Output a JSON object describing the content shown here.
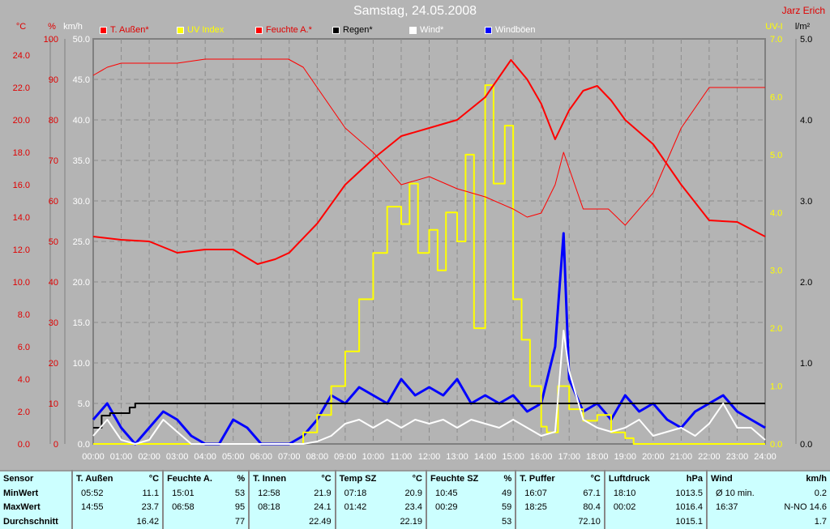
{
  "header": {
    "title": "Samstag, 24.05.2008",
    "author": "Jarz Erich"
  },
  "legend": [
    {
      "label": "T. Außen*",
      "color": "#ff0000",
      "text_color": "#e00000"
    },
    {
      "label": "UV Index",
      "color": "#ffff00",
      "text_color": "#ffff00"
    },
    {
      "label": "Feuchte A.*",
      "color": "#ff0000",
      "text_color": "#e00000"
    },
    {
      "label": "Regen*",
      "color": "#000000",
      "text_color": "#000000"
    },
    {
      "label": "Wind*",
      "color": "#ffffff",
      "text_color": "#ffffff"
    },
    {
      "label": "Windböen",
      "color": "#0000ff",
      "text_color": "#ffffff"
    }
  ],
  "chart_data": {
    "type": "line",
    "x_ticks": [
      "00:00",
      "01:00",
      "02:00",
      "03:00",
      "04:00",
      "05:00",
      "06:00",
      "07:00",
      "08:00",
      "09:00",
      "10:00",
      "11:00",
      "12:00",
      "13:00",
      "14:00",
      "15:00",
      "16:00",
      "17:00",
      "18:00",
      "19:00",
      "20:00",
      "21:00",
      "22:00",
      "23:00",
      "24:00"
    ],
    "axes": {
      "temp": {
        "unit": "°C",
        "range": [
          0,
          25
        ],
        "ticks": [
          "0.0",
          "2.0",
          "4.0",
          "6.0",
          "8.0",
          "10.0",
          "12.0",
          "14.0",
          "16.0",
          "18.0",
          "20.0",
          "22.0",
          "24.0"
        ],
        "color": "#e00000"
      },
      "hum": {
        "unit": "%",
        "range": [
          0,
          100
        ],
        "ticks": [
          "0",
          "10",
          "20",
          "30",
          "40",
          "50",
          "60",
          "70",
          "80",
          "90",
          "100"
        ],
        "color": "#e00000"
      },
      "wind": {
        "unit": "km/h",
        "range": [
          0,
          50
        ],
        "ticks": [
          "0.0",
          "5.0",
          "10.0",
          "15.0",
          "20.0",
          "25.0",
          "30.0",
          "35.0",
          "40.0",
          "45.0",
          "50.0"
        ],
        "color": "#ffffff"
      },
      "uv": {
        "unit": "UV-I",
        "range": [
          0,
          7
        ],
        "ticks": [
          "0.0",
          "1.0",
          "2.0",
          "3.0",
          "4.0",
          "5.0",
          "6.0",
          "7.0"
        ],
        "color": "#ffff00"
      },
      "rain": {
        "unit": "l/m²",
        "range": [
          0,
          5
        ],
        "ticks": [
          "0.0",
          "1.0",
          "2.0",
          "3.0",
          "4.0",
          "5.0"
        ],
        "color": "#000000"
      }
    },
    "grid": true,
    "series": [
      {
        "name": "T. Außen*",
        "axis": "temp",
        "color": "#ff0000",
        "width": 2,
        "x": [
          0,
          1,
          2,
          3,
          4,
          5,
          5.87,
          6.5,
          7,
          8,
          9,
          10,
          11,
          12,
          13,
          14,
          14.92,
          15.5,
          16,
          16.5,
          17,
          17.5,
          18,
          18.5,
          19,
          20,
          21,
          22,
          23,
          24
        ],
        "y": [
          12.8,
          12.6,
          12.5,
          11.8,
          12.0,
          12.0,
          11.1,
          11.4,
          11.8,
          13.6,
          16.0,
          17.6,
          19.0,
          19.5,
          20.0,
          21.4,
          23.7,
          22.5,
          21.0,
          18.8,
          20.6,
          21.8,
          22.1,
          21.2,
          20.0,
          18.5,
          16.0,
          13.8,
          13.7,
          12.8
        ]
      },
      {
        "name": "Feuchte A.*",
        "axis": "hum",
        "color": "#ff0000",
        "width": 1,
        "x": [
          0,
          0.5,
          1,
          2,
          3,
          4,
          5,
          6,
          6.97,
          7.5,
          8,
          9,
          10,
          11,
          12,
          13,
          14,
          15,
          15.5,
          16,
          16.5,
          16.8,
          17.5,
          18,
          18.4,
          19,
          20,
          21,
          22,
          23,
          24
        ],
        "y": [
          91,
          93,
          94,
          94,
          94,
          95,
          95,
          95,
          95,
          93,
          88,
          78,
          72,
          64,
          66,
          63,
          61,
          58,
          56,
          57,
          64,
          72,
          58,
          58,
          58,
          54,
          62,
          78,
          88,
          88,
          88
        ]
      },
      {
        "name": "UV Index",
        "axis": "uv",
        "color": "#ffff00",
        "width": 2,
        "x": [
          0,
          7,
          7.5,
          8,
          8.5,
          9,
          9.5,
          10,
          10.5,
          11,
          11.3,
          11.6,
          12,
          12.3,
          12.6,
          13,
          13.3,
          13.6,
          14,
          14.3,
          14.7,
          15,
          15.3,
          15.6,
          16,
          16.2,
          16.6,
          17,
          17.5,
          18,
          18.5,
          19,
          19.3,
          24
        ],
        "y": [
          0,
          0,
          0.2,
          0.5,
          1.0,
          1.6,
          2.5,
          3.3,
          4.1,
          3.8,
          4.5,
          3.3,
          3.7,
          3.0,
          4.0,
          3.5,
          5.0,
          2.0,
          6.2,
          4.5,
          5.5,
          2.5,
          1.8,
          1.0,
          0.3,
          0.2,
          1.0,
          0.6,
          0.4,
          0.5,
          0.2,
          0.1,
          0,
          0
        ]
      },
      {
        "name": "Regen*",
        "axis": "rain",
        "color": "#000000",
        "width": 2,
        "x": [
          0,
          0.3,
          0.6,
          1,
          1.3,
          1.5,
          1.7,
          24
        ],
        "y": [
          0.2,
          0.35,
          0.38,
          0.38,
          0.45,
          0.5,
          0.5,
          0.5
        ]
      },
      {
        "name": "Windböen",
        "axis": "wind",
        "color": "#0000ff",
        "width": 3,
        "x": [
          0,
          0.5,
          1,
          1.5,
          2,
          2.5,
          3,
          3.5,
          4,
          4.5,
          5,
          5.5,
          6,
          6.5,
          7,
          7.5,
          8,
          8.5,
          9,
          9.5,
          10,
          10.5,
          11,
          11.5,
          12,
          12.5,
          13,
          13.5,
          14,
          14.5,
          15,
          15.5,
          16,
          16.5,
          16.8,
          17,
          17.5,
          18,
          18.5,
          19,
          19.5,
          20,
          20.5,
          21,
          21.5,
          22,
          22.5,
          23,
          23.5,
          24
        ],
        "y": [
          3,
          5,
          2,
          0,
          2,
          4,
          3,
          1,
          0,
          0,
          3,
          2,
          0,
          0,
          0,
          1,
          3,
          6,
          5,
          7,
          6,
          5,
          8,
          6,
          7,
          6,
          8,
          5,
          6,
          5,
          6,
          4,
          5,
          12,
          26,
          8,
          4,
          5,
          3,
          6,
          4,
          5,
          3,
          2,
          4,
          5,
          6,
          4,
          3,
          2
        ]
      },
      {
        "name": "Wind*",
        "axis": "wind",
        "color": "#ffffff",
        "width": 2,
        "x": [
          0,
          0.5,
          1,
          1.5,
          2,
          2.5,
          3,
          3.5,
          4,
          5,
          6,
          7,
          7.5,
          8,
          8.5,
          9,
          9.5,
          10,
          10.5,
          11,
          11.5,
          12,
          12.5,
          13,
          13.5,
          14,
          14.5,
          15,
          15.5,
          16,
          16.5,
          16.8,
          17,
          17.5,
          18,
          18.5,
          19,
          19.5,
          20,
          20.5,
          21,
          21.5,
          22,
          22.5,
          23,
          23.5,
          24
        ],
        "y": [
          1,
          3,
          0.5,
          0,
          0.5,
          3,
          1.5,
          0,
          0,
          0,
          0,
          0,
          0,
          0.3,
          1,
          2.5,
          3,
          2,
          3,
          2,
          3,
          2.5,
          3,
          2,
          3,
          2.5,
          2,
          3,
          2,
          1,
          1.5,
          14,
          9,
          3,
          2,
          1.5,
          2,
          3,
          1,
          1.5,
          2,
          1,
          2.5,
          5,
          2,
          2,
          0.5
        ]
      }
    ]
  },
  "table": {
    "row_labels": [
      "Sensor",
      "MinWert",
      "MaxWert",
      "Durchschnitt"
    ],
    "columns": [
      {
        "name": "T. Außen",
        "unit": "°C",
        "min_time": "05:52",
        "min": "11.1",
        "max_time": "14:55",
        "max": "23.7",
        "avg": "16.42"
      },
      {
        "name": "Feuchte A.",
        "unit": "%",
        "min_time": "15:01",
        "min": "53",
        "max_time": "06:58",
        "max": "95",
        "avg": "77"
      },
      {
        "name": "T. Innen",
        "unit": "°C",
        "min_time": "12:58",
        "min": "21.9",
        "max_time": "08:18",
        "max": "24.1",
        "avg": "22.49"
      },
      {
        "name": "Temp SZ",
        "unit": "°C",
        "min_time": "07:18",
        "min": "20.9",
        "max_time": "01:42",
        "max": "23.4",
        "avg": "22.19"
      },
      {
        "name": "Feuchte SZ",
        "unit": "%",
        "min_time": "10:45",
        "min": "49",
        "max_time": "00:29",
        "max": "59",
        "avg": "53"
      },
      {
        "name": "T. Puffer",
        "unit": "°C",
        "min_time": "16:07",
        "min": "67.1",
        "max_time": "18:25",
        "max": "80.4",
        "avg": "72.10"
      },
      {
        "name": "Luftdruck",
        "unit": "hPa",
        "min_time": "18:10",
        "min": "1013.5",
        "max_time": "00:02",
        "max": "1016.4",
        "avg": "1015.1"
      },
      {
        "name": "Wind",
        "unit": "km/h",
        "min_time": "Ø 10 min.",
        "min": "0.2",
        "max_time": "16:37",
        "max": "N-NO 14.6",
        "avg": "1.7"
      }
    ]
  }
}
